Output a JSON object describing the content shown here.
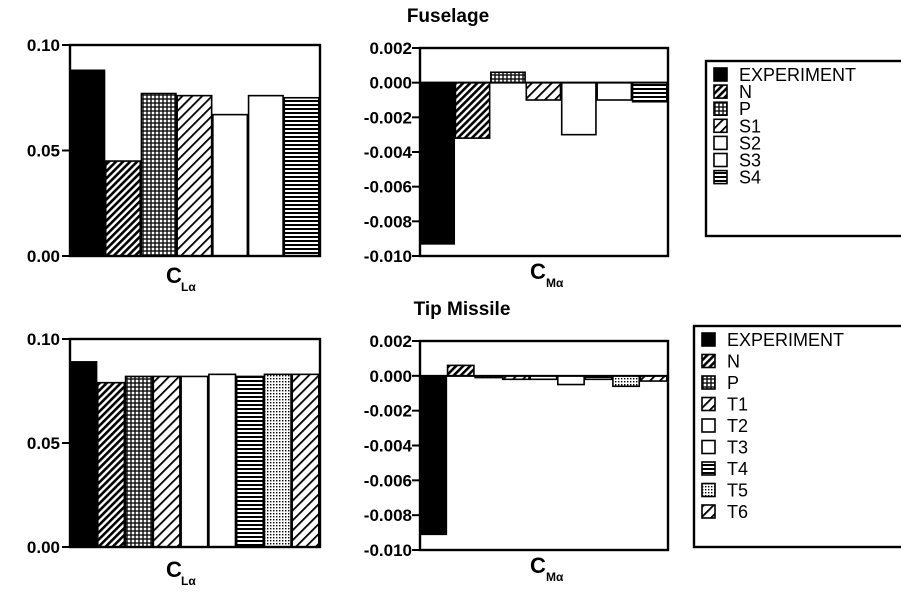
{
  "chart_data": [
    {
      "group": "Fuselage",
      "title": "Fuselage",
      "type": "bar",
      "xlabel_main": "C",
      "xlabel_sub": "Lα",
      "ylim": [
        0,
        0.1
      ],
      "yticks": [
        "0.10",
        "0.05",
        "0.00"
      ],
      "yticks_values": [
        0.1,
        0.05,
        0.0
      ],
      "categories": [
        "EXPERIMENT",
        "N",
        "P",
        "S1",
        "S2",
        "S3",
        "S4"
      ],
      "values": [
        0.088,
        0.045,
        0.077,
        0.076,
        0.067,
        0.076,
        0.075
      ]
    },
    {
      "group": "Fuselage",
      "type": "bar",
      "xlabel_main": "C",
      "xlabel_sub": "Mα",
      "ylim": [
        -0.01,
        0.002
      ],
      "yticks": [
        "0.002",
        "0.000",
        "-0.002",
        "-0.004",
        "-0.006",
        "-0.008",
        "-0.010"
      ],
      "yticks_values": [
        0.002,
        0.0,
        -0.002,
        -0.004,
        -0.006,
        -0.008,
        -0.01
      ],
      "categories": [
        "EXPERIMENT",
        "N",
        "P",
        "S1",
        "S2",
        "S3",
        "S4"
      ],
      "values": [
        -0.0093,
        -0.0032,
        0.0006,
        -0.001,
        -0.003,
        -0.001,
        -0.0011
      ]
    },
    {
      "group": "Tip Missile",
      "title": "Tip Missile",
      "type": "bar",
      "xlabel_main": "C",
      "xlabel_sub": "Lα",
      "ylim": [
        0,
        0.1
      ],
      "yticks": [
        "0.10",
        "0.05",
        "0.00"
      ],
      "yticks_values": [
        0.1,
        0.05,
        0.0
      ],
      "categories": [
        "EXPERIMENT",
        "N",
        "P",
        "T1",
        "T2",
        "T3",
        "T4",
        "T5",
        "T6"
      ],
      "values": [
        0.089,
        0.079,
        0.082,
        0.082,
        0.082,
        0.083,
        0.082,
        0.083,
        0.083
      ]
    },
    {
      "group": "Tip Missile",
      "type": "bar",
      "xlabel_main": "C",
      "xlabel_sub": "Mα",
      "ylim": [
        -0.01,
        0.002
      ],
      "yticks": [
        "0.002",
        "0.000",
        "-0.002",
        "-0.004",
        "-0.006",
        "-0.008",
        "-0.010"
      ],
      "yticks_values": [
        0.002,
        0.0,
        -0.002,
        -0.004,
        -0.006,
        -0.008,
        -0.01
      ],
      "categories": [
        "EXPERIMENT",
        "N",
        "P",
        "T1",
        "T2",
        "T3",
        "T4",
        "T5",
        "T6"
      ],
      "values": [
        -0.0091,
        0.0006,
        -0.0001,
        -0.0002,
        -0.0002,
        -0.0005,
        -0.0002,
        -0.0006,
        -0.0003
      ]
    }
  ],
  "legends": [
    {
      "items": [
        {
          "label": "EXPERIMENT",
          "pattern": "solid"
        },
        {
          "label": "N",
          "pattern": "diag"
        },
        {
          "label": "P",
          "pattern": "cross"
        },
        {
          "label": "S1",
          "pattern": "diagw"
        },
        {
          "label": "S2",
          "pattern": "white"
        },
        {
          "label": "S3",
          "pattern": "white"
        },
        {
          "label": "S4",
          "pattern": "horiz"
        }
      ]
    },
    {
      "items": [
        {
          "label": "EXPERIMENT",
          "pattern": "solid"
        },
        {
          "label": "N",
          "pattern": "diag"
        },
        {
          "label": "P",
          "pattern": "cross"
        },
        {
          "label": "T1",
          "pattern": "diagw"
        },
        {
          "label": "T2",
          "pattern": "white"
        },
        {
          "label": "T3",
          "pattern": "white"
        },
        {
          "label": "T4",
          "pattern": "horiz"
        },
        {
          "label": "T5",
          "pattern": "dots"
        },
        {
          "label": "T6",
          "pattern": "diagw"
        }
      ]
    }
  ]
}
